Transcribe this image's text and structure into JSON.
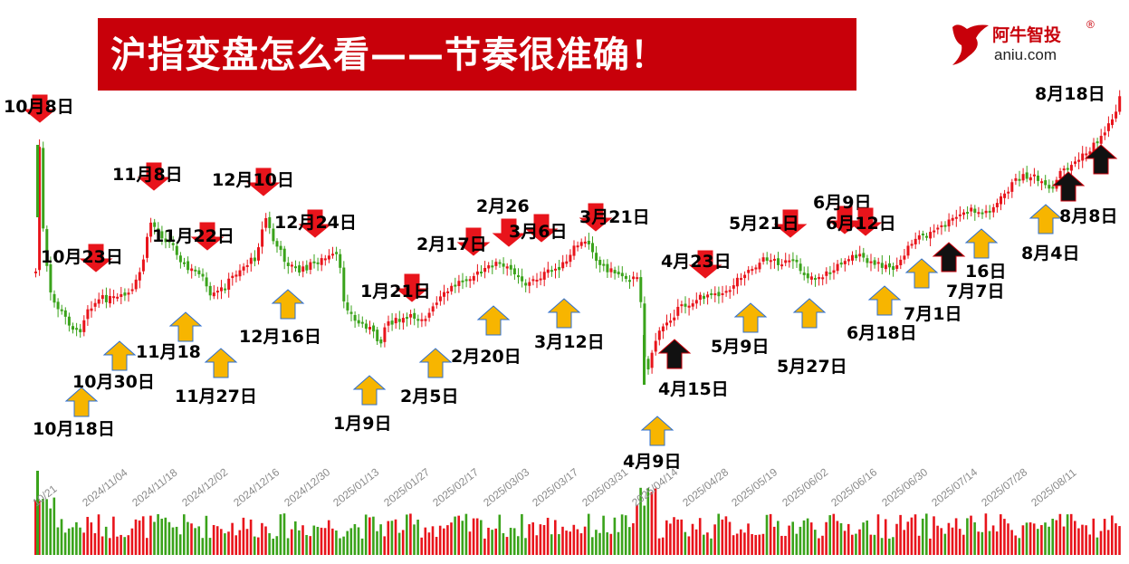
{
  "title": "沪指变盘怎么看——节奏很准确！",
  "logo": {
    "name": "阿牛智投",
    "domain": "aniu.com",
    "mark": "®"
  },
  "colors": {
    "banner": "#c8000a",
    "up": "#e8141b",
    "down": "#3aa31b",
    "arrow_red": "#e8141b",
    "arrow_yellow": "#f7b500",
    "arrow_black": "#111111"
  },
  "chart_data": {
    "type": "candlestick",
    "title": "沪指变盘怎么看——节奏很准确！",
    "xlabel": "",
    "ylabel": "",
    "x_tick_labels": [
      "10/21",
      "2024/11/04",
      "2024/11/18",
      "2024/12/02",
      "2024/12/16",
      "2024/12/30",
      "2025/01/13",
      "2025/01/27",
      "2025/02/17",
      "2025/03/03",
      "2025/03/17",
      "2025/03/31",
      "2025/04/14",
      "2025/04/28",
      "2025/05/19",
      "2025/06/02",
      "2025/06/16",
      "2025/06/30",
      "2025/07/14",
      "2025/07/28",
      "2025/08/11"
    ],
    "volume_panel": true,
    "annotations": [
      {
        "label": "10月8日",
        "type": "red_down"
      },
      {
        "label": "10月18日",
        "type": "yellow_up"
      },
      {
        "label": "10月23日",
        "type": "red_down"
      },
      {
        "label": "10月30日",
        "type": "yellow_up"
      },
      {
        "label": "11月8日",
        "type": "red_down"
      },
      {
        "label": "11月18",
        "type": "yellow_up"
      },
      {
        "label": "11月22日",
        "type": "red_down"
      },
      {
        "label": "11月27日",
        "type": "yellow_up"
      },
      {
        "label": "12月10日",
        "type": "red_down"
      },
      {
        "label": "12月16日",
        "type": "yellow_up"
      },
      {
        "label": "12月24日",
        "type": "red_down"
      },
      {
        "label": "1月9日",
        "type": "yellow_up"
      },
      {
        "label": "1月21日",
        "type": "red_down"
      },
      {
        "label": "2月5日",
        "type": "yellow_up"
      },
      {
        "label": "2月17日",
        "type": "red_down"
      },
      {
        "label": "2月20日",
        "type": "yellow_up"
      },
      {
        "label": "2月26",
        "type": "red_down"
      },
      {
        "label": "3月6日",
        "type": "red_down"
      },
      {
        "label": "3月12日",
        "type": "yellow_up"
      },
      {
        "label": "3月21日",
        "type": "red_down"
      },
      {
        "label": "4月9日",
        "type": "yellow_up"
      },
      {
        "label": "4月15日",
        "type": "black_up"
      },
      {
        "label": "4月23日",
        "type": "red_down"
      },
      {
        "label": "5月9日",
        "type": "yellow_up"
      },
      {
        "label": "5月21日",
        "type": "red_down"
      },
      {
        "label": "5月27日",
        "type": "yellow_up"
      },
      {
        "label": "6月9日",
        "type": "red_down"
      },
      {
        "label": "6月12日",
        "type": "red_down"
      },
      {
        "label": "6月18日",
        "type": "yellow_up"
      },
      {
        "label": "7月1日",
        "type": "yellow_up"
      },
      {
        "label": "7月7日",
        "type": "black_up"
      },
      {
        "label": "16日",
        "type": "yellow_up"
      },
      {
        "label": "8月4日",
        "type": "yellow_up"
      },
      {
        "label": "8月8日",
        "type": "black_up"
      },
      {
        "label": "8月18日",
        "type": "black_up"
      }
    ],
    "grid": false,
    "legend": "none"
  }
}
